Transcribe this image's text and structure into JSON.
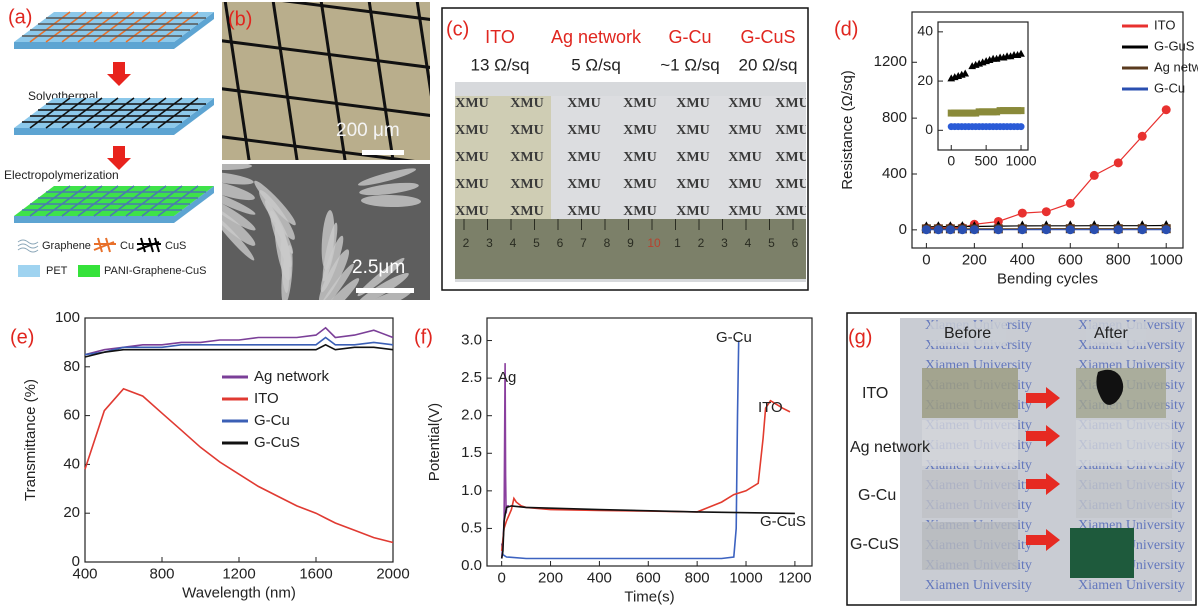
{
  "panels": {
    "a": {
      "label": "(a)",
      "steps": [
        "Solvothermal",
        "Electropolymerization"
      ],
      "legend": [
        "Graphene",
        "Cu",
        "CuS",
        "PET",
        "PANI-Graphene-CuS"
      ]
    },
    "b": {
      "label": "(b)",
      "scale_bars": [
        "200 μm",
        "2.5μm"
      ]
    },
    "c": {
      "label": "(c)",
      "samples": [
        "ITO",
        "Ag network",
        "G-Cu",
        "G-CuS"
      ],
      "sheet_resistance": [
        "13 Ω/sq",
        "5 Ω/sq",
        "~1 Ω/sq",
        "20 Ω/sq"
      ],
      "stamp_text": "XMU",
      "ruler_labels": [
        "2",
        "3",
        "4",
        "5",
        "6",
        "7",
        "8",
        "9",
        "10",
        "1",
        "2",
        "3",
        "4",
        "5",
        "6"
      ]
    },
    "d": {
      "label": "(d)"
    },
    "e": {
      "label": "(e)"
    },
    "f": {
      "label": "(f)"
    },
    "g": {
      "label": "(g)",
      "columns": [
        "Before",
        "After"
      ],
      "samples": [
        "ITO",
        "Ag network",
        "G-Cu",
        "G-CuS"
      ],
      "background_text": "Xiamen University"
    }
  },
  "chart_data": [
    {
      "type": "line",
      "y_label": "Resistance (Ω/sq)",
      "x_label": "Bending cycles",
      "xlim": [
        -60,
        1070
      ],
      "xticks": [
        0,
        200,
        400,
        600,
        800,
        1000
      ],
      "ylim": [
        -130,
        1560
      ],
      "yticks": [
        0,
        400,
        800,
        1200
      ],
      "legend": "upper right",
      "x": [
        0,
        50,
        100,
        150,
        200,
        300,
        400,
        500,
        600,
        700,
        800,
        900,
        1000
      ],
      "series": [
        {
          "name": "ITO",
          "color": "#e8312f",
          "marker": "circle",
          "values": [
            13,
            14,
            15,
            17,
            40,
            60,
            120,
            130,
            190,
            390,
            480,
            670,
            860
          ]
        },
        {
          "name": "G-GuS",
          "color": "#000000",
          "marker": "triangle",
          "values": [
            22,
            23,
            23,
            24,
            24,
            27,
            28,
            29,
            29,
            30,
            30,
            30,
            31
          ]
        },
        {
          "name": "Ag network",
          "color": "#5a3a1e",
          "marker": "square",
          "values": [
            7,
            7,
            7,
            7,
            7,
            7,
            7,
            8,
            8,
            8,
            8,
            8,
            8
          ]
        },
        {
          "name": "G-Cu",
          "color": "#2a4fb0",
          "marker": "circle",
          "values": [
            1,
            1,
            1,
            1,
            1,
            1,
            1,
            1,
            1,
            1,
            1,
            1,
            1
          ]
        }
      ]
    },
    {
      "type": "line",
      "xlim": [
        -190,
        1100
      ],
      "xticks": [
        0,
        500,
        1000
      ],
      "ylim": [
        -8,
        44
      ],
      "yticks": [
        0,
        20,
        40
      ],
      "x": [
        0,
        50,
        100,
        150,
        200,
        250,
        300,
        350,
        400,
        450,
        500,
        550,
        600,
        650,
        700,
        750,
        800,
        850,
        900,
        950,
        1000
      ],
      "series": [
        {
          "color": "#000000",
          "marker": "triangle",
          "values": [
            21,
            21.5,
            22,
            22.5,
            23,
            null,
            26,
            26.5,
            27,
            27.5,
            28,
            28.5,
            29,
            29,
            29.5,
            29.5,
            30,
            30,
            30.5,
            30.5,
            31
          ]
        },
        {
          "color": "#8a8a3a",
          "marker": "square",
          "values": [
            7,
            7,
            7,
            7,
            7,
            7,
            7,
            7,
            7.5,
            7.5,
            7.5,
            7.5,
            7.5,
            7.5,
            8,
            8,
            8,
            8,
            8,
            8,
            8
          ]
        },
        {
          "color": "#2a5bd7",
          "marker": "circle",
          "values": [
            1.5,
            1.5,
            1.5,
            1.5,
            1.5,
            1.5,
            1.5,
            1.5,
            1.5,
            1.5,
            1.5,
            1.5,
            1.5,
            1.5,
            1.5,
            1.5,
            1.5,
            1.5,
            1.5,
            1.5,
            1.5
          ]
        }
      ]
    },
    {
      "type": "line",
      "y_label": "Transmittance (%)",
      "x_label": "Wavelength (nm)",
      "xlim": [
        400,
        2000
      ],
      "xticks": [
        400,
        800,
        1200,
        1600,
        2000
      ],
      "ylim": [
        0,
        100
      ],
      "yticks": [
        0,
        20,
        40,
        60,
        80,
        100
      ],
      "legend": "center right",
      "x": [
        400,
        500,
        600,
        700,
        800,
        900,
        1000,
        1100,
        1200,
        1300,
        1400,
        1500,
        1600,
        1650,
        1700,
        1800,
        1900,
        2000
      ],
      "series": [
        {
          "name": "Ag network",
          "color": "#7b3f98",
          "values": [
            85,
            87,
            88,
            89,
            89,
            90,
            90,
            91,
            91,
            92,
            92,
            92,
            93,
            96,
            92,
            93,
            95,
            92
          ]
        },
        {
          "name": "ITO",
          "color": "#e03a32",
          "values": [
            38,
            62,
            71,
            68,
            61,
            54,
            47,
            41,
            36,
            31,
            27,
            23,
            20,
            18,
            16,
            13,
            10,
            8
          ]
        },
        {
          "name": "G-Cu",
          "color": "#3b5fb5",
          "values": [
            85,
            86,
            88,
            88,
            88,
            89,
            89,
            89,
            89,
            89,
            89,
            89,
            89,
            92,
            89,
            89,
            90,
            89
          ]
        },
        {
          "name": "G-CuS",
          "color": "#111111",
          "values": [
            84,
            86,
            87,
            87,
            87,
            87,
            87,
            87,
            87,
            87,
            87,
            87,
            87,
            89,
            87,
            88,
            88,
            87
          ]
        }
      ]
    },
    {
      "type": "line",
      "y_label": "Potential(V)",
      "x_label": "Time(s)",
      "xlim": [
        -60,
        1270
      ],
      "xticks": [
        0,
        200,
        400,
        600,
        800,
        1000,
        1200
      ],
      "ylim": [
        0,
        3.3
      ],
      "yticks": [
        {
          "value": 0,
          "label": "0.0"
        },
        0.5,
        {
          "value": 1,
          "label": "1.0"
        },
        1.5,
        {
          "value": 2,
          "label": "2.0"
        },
        2.5,
        {
          "value": 3,
          "label": "3.0"
        }
      ],
      "series": [
        {
          "name": "Ag",
          "color": "#8a3f9e",
          "x": [
            0,
            5,
            10,
            14,
            16,
            18,
            22,
            30
          ],
          "values": [
            0.1,
            0.3,
            0.6,
            2.7,
            1.2,
            0.7,
            0.8,
            0.8
          ]
        },
        {
          "name": "G-Cu",
          "color": "#3c62c0",
          "x": [
            0,
            5,
            20,
            100,
            300,
            500,
            700,
            900,
            950,
            960,
            965,
            970
          ],
          "values": [
            0.3,
            0.15,
            0.12,
            0.1,
            0.1,
            0.1,
            0.1,
            0.1,
            0.12,
            0.5,
            2.0,
            3.0
          ]
        },
        {
          "name": "ITO",
          "color": "#e23b2e",
          "x": [
            0,
            10,
            20,
            40,
            50,
            60,
            80,
            100,
            200,
            400,
            600,
            800,
            900,
            950,
            1000,
            1050,
            1070,
            1080,
            1100,
            1150,
            1180
          ],
          "values": [
            0.2,
            0.5,
            0.6,
            0.75,
            0.9,
            0.85,
            0.8,
            0.78,
            0.75,
            0.74,
            0.73,
            0.72,
            0.85,
            0.95,
            1.0,
            1.1,
            1.7,
            2.1,
            2.2,
            2.1,
            2.05
          ]
        },
        {
          "name": "G-CuS",
          "color": "#111111",
          "x": [
            0,
            5,
            10,
            20,
            40,
            100,
            400,
            800,
            1200
          ],
          "values": [
            0.1,
            0.2,
            0.6,
            0.78,
            0.8,
            0.78,
            0.75,
            0.72,
            0.7
          ]
        }
      ]
    }
  ]
}
